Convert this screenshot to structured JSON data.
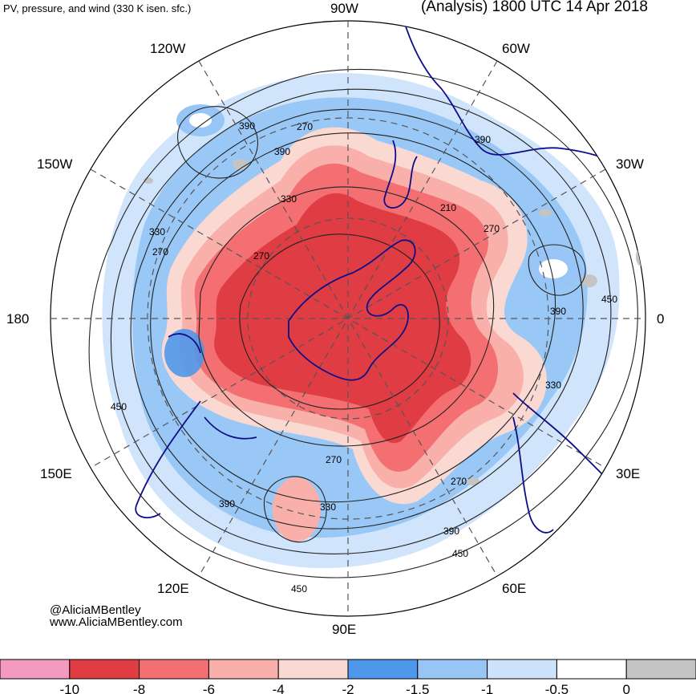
{
  "header": {
    "subtitle": "PV, pressure, and wind (330 K isen. sfc.)",
    "title": "(Analysis) 1800 UTC 14 Apr 2018"
  },
  "credit": {
    "twitter": "@AliciaMBentley",
    "website": "www.AliciaMBentley.com"
  },
  "longitude_labels": {
    "lon_90w": "90W",
    "lon_60w": "60W",
    "lon_30w": "30W",
    "lon_0": "0",
    "lon_30e": "30E",
    "lon_60e": "60E",
    "lon_90e": "90E",
    "lon_120e": "120E",
    "lon_150e": "150E",
    "lon_180": "180",
    "lon_150w": "150W",
    "lon_120w": "120W"
  },
  "contour_labels": [
    "390",
    "390",
    "330",
    "270",
    "330",
    "270",
    "270",
    "210",
    "270",
    "390",
    "450",
    "330",
    "390",
    "450",
    "270",
    "270",
    "330",
    "390",
    "450",
    "390",
    "450"
  ],
  "colorbar": {
    "ticks": [
      "-10",
      "-8",
      "-6",
      "-4",
      "-2",
      "-1.5",
      "-1",
      "-0.5",
      "0"
    ],
    "colors": [
      "#f49ac1",
      "#e03c43",
      "#f36f72",
      "#f9b0aa",
      "#fbd9d3",
      "#4f97ea",
      "#97c6f6",
      "#cde3fb",
      "#ffffff",
      "#c4c4c4"
    ]
  },
  "colors": {
    "strong_neg_pv": "#e03c43",
    "mid_neg_pv": "#f36f72",
    "weak_neg_pv": "#f9b0aa",
    "blue_pv": "#97c6f6",
    "light_blue_pv": "#cde3fb",
    "coastline": "#0d0d8a",
    "contour": "#222222"
  }
}
